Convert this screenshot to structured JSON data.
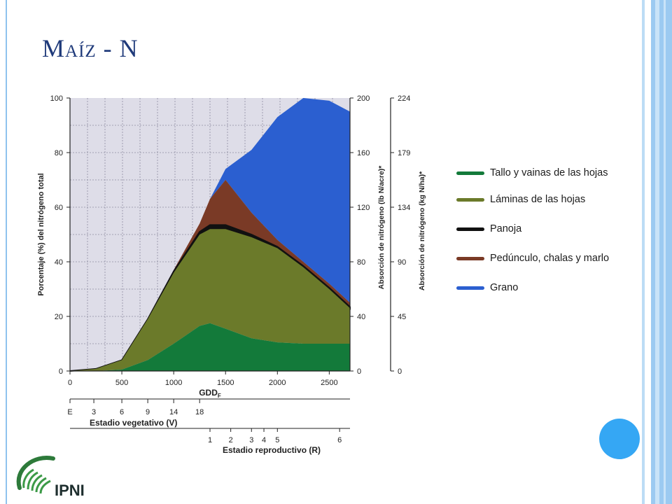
{
  "slide": {
    "title": "Maíz - N",
    "logo_text": "IPNI"
  },
  "colors": {
    "tallo": "#137a3a",
    "laminas": "#6b7a2a",
    "panoja": "#111111",
    "pedunculo": "#7a3a26",
    "grano": "#2b5fd0",
    "frame": "#9ccaf1",
    "title": "#1f3a7a"
  },
  "chart_data": {
    "type": "area",
    "xlabel": "GDD",
    "xlabel_sub": "F",
    "ylabel": "Porcentaje (%) del nitrógeno total",
    "ylabel2": "Absorción de nitrógeno (lb N/acre)*",
    "ylabel3": "Absorción de nitrógeno (kg N/ha)*",
    "xlim": [
      0,
      2700
    ],
    "ylim": [
      0,
      100
    ],
    "x_ticks": [
      "0",
      "500",
      "1000",
      "1500",
      "2000",
      "2500"
    ],
    "y_ticks": [
      "0",
      "20",
      "40",
      "60",
      "80",
      "100"
    ],
    "y2_ticks": [
      "0",
      "40",
      "80",
      "120",
      "160",
      "200"
    ],
    "y3_ticks": [
      "0",
      "45",
      "90",
      "134",
      "179",
      "224"
    ],
    "grid": true,
    "x": [
      0,
      250,
      500,
      750,
      1000,
      1250,
      1350,
      1500,
      1750,
      2000,
      2250,
      2500,
      2700
    ],
    "series": [
      {
        "name": "Tallo y vainas de las hojas",
        "color": "#137a3a",
        "values": [
          0,
          0,
          0.5,
          4,
          10,
          16.5,
          17.5,
          15.5,
          12,
          10.5,
          10,
          10,
          10
        ]
      },
      {
        "name": "Láminas de las hojas",
        "color": "#6b7a2a",
        "values": [
          0,
          0.8,
          4,
          19,
          36,
          50,
          52,
          52,
          49,
          45,
          38,
          30,
          23
        ]
      },
      {
        "name": "Panoja",
        "color": "#111111",
        "values": [
          0,
          0.8,
          4,
          19,
          36.5,
          51,
          53.5,
          53.5,
          50,
          45.5,
          38.5,
          30.5,
          23.5
        ]
      },
      {
        "name": "Pedúnculo, chalas y marlo",
        "color": "#7a3a26",
        "values": [
          0,
          0.8,
          4,
          19,
          37,
          54,
          63,
          70,
          58,
          48,
          40,
          32,
          25
        ]
      },
      {
        "name": "Grano",
        "color": "#2b5fd0",
        "values": [
          0,
          0.8,
          4,
          19,
          37,
          54,
          63,
          74,
          81,
          93,
          100,
          99,
          95
        ]
      }
    ],
    "legend": [
      "Tallo y vainas de las hojas",
      "Láminas de las hojas",
      "Panoja",
      "Pedúnculo, chalas y marlo",
      "Grano"
    ],
    "legend_position": "right",
    "vegetative_stage": {
      "label": "Estadio vegetativo (V)",
      "ticks": [
        {
          "label": "E",
          "gdd": 0
        },
        {
          "label": "3",
          "gdd": 230
        },
        {
          "label": "6",
          "gdd": 500
        },
        {
          "label": "9",
          "gdd": 750
        },
        {
          "label": "14",
          "gdd": 1000
        },
        {
          "label": "18",
          "gdd": 1250
        }
      ]
    },
    "reproductive_stage": {
      "label": "Estadio reproductivo (R)",
      "ticks": [
        {
          "label": "1",
          "gdd": 1350
        },
        {
          "label": "2",
          "gdd": 1550
        },
        {
          "label": "3",
          "gdd": 1750
        },
        {
          "label": "4",
          "gdd": 1870
        },
        {
          "label": "5",
          "gdd": 2000
        },
        {
          "label": "6",
          "gdd": 2600
        }
      ]
    }
  }
}
